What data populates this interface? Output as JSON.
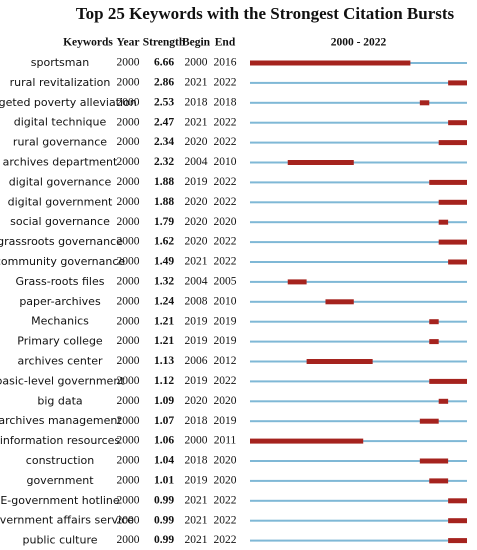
{
  "chart_data": {
    "type": "burst",
    "title": "Top 25 Keywords with the Strongest Citation Bursts",
    "columns": [
      "Keywords",
      "Year",
      "Strength",
      "Begin",
      "End"
    ],
    "range_label": "2000 - 2022",
    "xlim": [
      2000,
      2022
    ],
    "base_color": "#7fb8d6",
    "burst_color": "#a5231e",
    "rows": [
      {
        "keyword": "sportsman",
        "year": 2000,
        "strength": 6.66,
        "begin": 2000,
        "end": 2016
      },
      {
        "keyword": "rural revitalization",
        "year": 2000,
        "strength": 2.86,
        "begin": 2021,
        "end": 2022
      },
      {
        "keyword": "targeted poverty alleviation",
        "year": 2000,
        "strength": 2.53,
        "begin": 2018,
        "end": 2018
      },
      {
        "keyword": "digital technique",
        "year": 2000,
        "strength": 2.47,
        "begin": 2021,
        "end": 2022
      },
      {
        "keyword": "rural governance",
        "year": 2000,
        "strength": 2.34,
        "begin": 2020,
        "end": 2022
      },
      {
        "keyword": "archives department",
        "year": 2000,
        "strength": 2.32,
        "begin": 2004,
        "end": 2010
      },
      {
        "keyword": "digital governance",
        "year": 2000,
        "strength": 1.88,
        "begin": 2019,
        "end": 2022
      },
      {
        "keyword": "digital government",
        "year": 2000,
        "strength": 1.88,
        "begin": 2020,
        "end": 2022
      },
      {
        "keyword": "social governance",
        "year": 2000,
        "strength": 1.79,
        "begin": 2020,
        "end": 2020
      },
      {
        "keyword": "grassroots governance",
        "year": 2000,
        "strength": 1.62,
        "begin": 2020,
        "end": 2022
      },
      {
        "keyword": "community governance",
        "year": 2000,
        "strength": 1.49,
        "begin": 2021,
        "end": 2022
      },
      {
        "keyword": "Grass-roots files",
        "year": 2000,
        "strength": 1.32,
        "begin": 2004,
        "end": 2005
      },
      {
        "keyword": "paper-archives",
        "year": 2000,
        "strength": 1.24,
        "begin": 2008,
        "end": 2010
      },
      {
        "keyword": "Mechanics",
        "year": 2000,
        "strength": 1.21,
        "begin": 2019,
        "end": 2019
      },
      {
        "keyword": "Primary college",
        "year": 2000,
        "strength": 1.21,
        "begin": 2019,
        "end": 2019
      },
      {
        "keyword": "archives center",
        "year": 2000,
        "strength": 1.13,
        "begin": 2006,
        "end": 2012
      },
      {
        "keyword": "basic-level government",
        "year": 2000,
        "strength": 1.12,
        "begin": 2019,
        "end": 2022
      },
      {
        "keyword": "big data",
        "year": 2000,
        "strength": 1.09,
        "begin": 2020,
        "end": 2020
      },
      {
        "keyword": "archives management",
        "year": 2000,
        "strength": 1.07,
        "begin": 2018,
        "end": 2019
      },
      {
        "keyword": "information resources",
        "year": 2000,
        "strength": 1.06,
        "begin": 2000,
        "end": 2011
      },
      {
        "keyword": "construction",
        "year": 2000,
        "strength": 1.04,
        "begin": 2018,
        "end": 2020
      },
      {
        "keyword": "government",
        "year": 2000,
        "strength": 1.01,
        "begin": 2019,
        "end": 2020
      },
      {
        "keyword": "E-government hotline",
        "year": 2000,
        "strength": 0.99,
        "begin": 2021,
        "end": 2022
      },
      {
        "keyword": "government affairs service",
        "year": 2000,
        "strength": 0.99,
        "begin": 2021,
        "end": 2022
      },
      {
        "keyword": "public culture",
        "year": 2000,
        "strength": 0.99,
        "begin": 2021,
        "end": 2022
      }
    ]
  }
}
